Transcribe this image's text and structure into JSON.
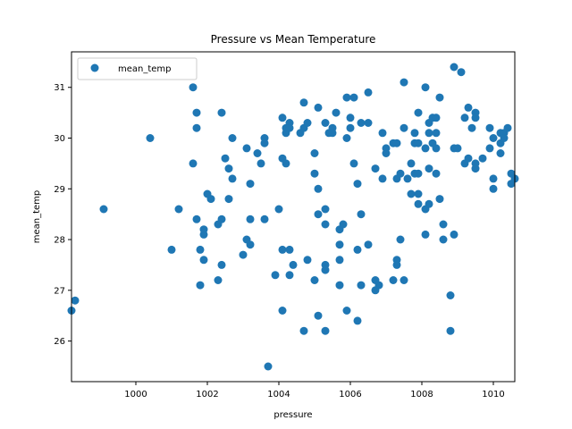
{
  "chart_data": {
    "type": "scatter",
    "title": "Pressure vs Mean Temperature",
    "xlabel": "pressure",
    "ylabel": "mean_temp",
    "xlim": [
      998.2,
      1010.6
    ],
    "ylim": [
      25.2,
      31.7
    ],
    "xticks": [
      1000,
      1002,
      1004,
      1006,
      1008,
      1010
    ],
    "yticks": [
      26,
      27,
      28,
      29,
      30,
      31
    ],
    "grid": false,
    "legend": {
      "placement": "top-left",
      "entries": [
        "mean_temp"
      ]
    },
    "colors": {
      "marker": "#1f77b4"
    },
    "series": [
      {
        "name": "mean_temp",
        "points": [
          [
            998.2,
            26.6
          ],
          [
            998.3,
            26.8
          ],
          [
            999.1,
            28.6
          ],
          [
            1000.4,
            30.0
          ],
          [
            1001.0,
            27.8
          ],
          [
            1001.2,
            28.6
          ],
          [
            1001.6,
            31.0
          ],
          [
            1001.6,
            29.5
          ],
          [
            1001.7,
            30.5
          ],
          [
            1001.7,
            30.2
          ],
          [
            1001.7,
            28.4
          ],
          [
            1001.8,
            27.8
          ],
          [
            1001.8,
            27.1
          ],
          [
            1001.9,
            28.1
          ],
          [
            1001.9,
            28.2
          ],
          [
            1001.9,
            27.6
          ],
          [
            1002.0,
            28.9
          ],
          [
            1002.1,
            28.8
          ],
          [
            1002.3,
            28.3
          ],
          [
            1002.3,
            27.2
          ],
          [
            1002.4,
            30.5
          ],
          [
            1002.4,
            27.5
          ],
          [
            1002.4,
            28.4
          ],
          [
            1002.5,
            29.6
          ],
          [
            1002.6,
            28.8
          ],
          [
            1002.6,
            29.4
          ],
          [
            1002.7,
            30.0
          ],
          [
            1002.7,
            29.2
          ],
          [
            1003.0,
            27.7
          ],
          [
            1003.1,
            29.8
          ],
          [
            1003.1,
            28.0
          ],
          [
            1003.2,
            27.9
          ],
          [
            1003.2,
            29.1
          ],
          [
            1003.2,
            28.4
          ],
          [
            1003.4,
            29.7
          ],
          [
            1003.5,
            29.5
          ],
          [
            1003.6,
            30.0
          ],
          [
            1003.6,
            29.9
          ],
          [
            1003.6,
            28.4
          ],
          [
            1003.7,
            25.5
          ],
          [
            1003.9,
            27.3
          ],
          [
            1004.0,
            28.6
          ],
          [
            1004.1,
            30.4
          ],
          [
            1004.1,
            29.6
          ],
          [
            1004.1,
            27.8
          ],
          [
            1004.1,
            26.6
          ],
          [
            1004.2,
            30.1
          ],
          [
            1004.2,
            30.2
          ],
          [
            1004.2,
            29.5
          ],
          [
            1004.3,
            30.3
          ],
          [
            1004.3,
            30.2
          ],
          [
            1004.3,
            27.8
          ],
          [
            1004.3,
            27.3
          ],
          [
            1004.4,
            27.5
          ],
          [
            1004.6,
            30.1
          ],
          [
            1004.7,
            30.7
          ],
          [
            1004.7,
            30.2
          ],
          [
            1004.7,
            26.2
          ],
          [
            1004.8,
            27.6
          ],
          [
            1004.8,
            30.3
          ],
          [
            1005.0,
            29.7
          ],
          [
            1005.0,
            29.3
          ],
          [
            1005.0,
            27.2
          ],
          [
            1005.1,
            30.6
          ],
          [
            1005.1,
            29.0
          ],
          [
            1005.1,
            28.5
          ],
          [
            1005.1,
            26.5
          ],
          [
            1005.3,
            30.3
          ],
          [
            1005.3,
            28.6
          ],
          [
            1005.3,
            28.3
          ],
          [
            1005.3,
            27.5
          ],
          [
            1005.3,
            27.4
          ],
          [
            1005.3,
            26.2
          ],
          [
            1005.4,
            30.1
          ],
          [
            1005.5,
            30.2
          ],
          [
            1005.5,
            30.1
          ],
          [
            1005.6,
            30.5
          ],
          [
            1005.7,
            28.2
          ],
          [
            1005.7,
            27.9
          ],
          [
            1005.7,
            27.6
          ],
          [
            1005.7,
            27.1
          ],
          [
            1005.8,
            28.3
          ],
          [
            1005.9,
            30.8
          ],
          [
            1005.9,
            30.0
          ],
          [
            1005.9,
            26.6
          ],
          [
            1006.0,
            30.4
          ],
          [
            1006.0,
            30.2
          ],
          [
            1006.1,
            30.8
          ],
          [
            1006.1,
            29.5
          ],
          [
            1006.2,
            29.1
          ],
          [
            1006.2,
            27.8
          ],
          [
            1006.2,
            26.4
          ],
          [
            1006.3,
            30.3
          ],
          [
            1006.3,
            28.5
          ],
          [
            1006.3,
            27.1
          ],
          [
            1006.5,
            30.9
          ],
          [
            1006.5,
            30.3
          ],
          [
            1006.5,
            27.9
          ],
          [
            1006.7,
            29.4
          ],
          [
            1006.7,
            27.2
          ],
          [
            1006.7,
            27.0
          ],
          [
            1006.8,
            27.1
          ],
          [
            1006.9,
            29.2
          ],
          [
            1006.9,
            30.1
          ],
          [
            1007.0,
            29.8
          ],
          [
            1007.0,
            29.7
          ],
          [
            1007.2,
            29.9
          ],
          [
            1007.2,
            27.2
          ],
          [
            1007.3,
            27.6
          ],
          [
            1007.3,
            27.5
          ],
          [
            1007.3,
            29.9
          ],
          [
            1007.3,
            29.2
          ],
          [
            1007.4,
            29.3
          ],
          [
            1007.4,
            28.0
          ],
          [
            1007.5,
            31.1
          ],
          [
            1007.5,
            30.2
          ],
          [
            1007.5,
            27.2
          ],
          [
            1007.6,
            29.2
          ],
          [
            1007.7,
            29.5
          ],
          [
            1007.7,
            28.9
          ],
          [
            1007.8,
            30.1
          ],
          [
            1007.8,
            29.9
          ],
          [
            1007.8,
            29.3
          ],
          [
            1007.9,
            30.5
          ],
          [
            1007.9,
            29.9
          ],
          [
            1007.9,
            29.3
          ],
          [
            1007.9,
            28.9
          ],
          [
            1007.9,
            28.7
          ],
          [
            1008.1,
            31.0
          ],
          [
            1008.1,
            29.8
          ],
          [
            1008.1,
            28.6
          ],
          [
            1008.1,
            28.1
          ],
          [
            1008.2,
            30.3
          ],
          [
            1008.2,
            30.1
          ],
          [
            1008.2,
            29.4
          ],
          [
            1008.2,
            28.7
          ],
          [
            1008.3,
            30.4
          ],
          [
            1008.3,
            29.9
          ],
          [
            1008.4,
            30.4
          ],
          [
            1008.4,
            30.1
          ],
          [
            1008.4,
            29.8
          ],
          [
            1008.4,
            29.3
          ],
          [
            1008.5,
            30.8
          ],
          [
            1008.5,
            28.8
          ],
          [
            1008.6,
            28.3
          ],
          [
            1008.6,
            28.0
          ],
          [
            1008.8,
            26.9
          ],
          [
            1008.8,
            26.2
          ],
          [
            1008.9,
            31.4
          ],
          [
            1008.9,
            29.8
          ],
          [
            1008.9,
            28.1
          ],
          [
            1009.0,
            29.8
          ],
          [
            1009.1,
            31.3
          ],
          [
            1009.2,
            30.4
          ],
          [
            1009.2,
            29.5
          ],
          [
            1009.3,
            30.6
          ],
          [
            1009.3,
            29.6
          ],
          [
            1009.4,
            30.2
          ],
          [
            1009.5,
            30.5
          ],
          [
            1009.5,
            30.4
          ],
          [
            1009.5,
            29.5
          ],
          [
            1009.5,
            29.4
          ],
          [
            1009.7,
            29.6
          ],
          [
            1009.9,
            30.2
          ],
          [
            1009.9,
            29.8
          ],
          [
            1010.0,
            30.0
          ],
          [
            1010.0,
            29.2
          ],
          [
            1010.0,
            29.0
          ],
          [
            1010.2,
            30.1
          ],
          [
            1010.2,
            29.9
          ],
          [
            1010.2,
            29.7
          ],
          [
            1010.3,
            30.1
          ],
          [
            1010.3,
            30.0
          ],
          [
            1010.4,
            30.2
          ],
          [
            1010.5,
            29.3
          ],
          [
            1010.5,
            29.1
          ],
          [
            1010.6,
            29.2
          ]
        ]
      }
    ]
  }
}
